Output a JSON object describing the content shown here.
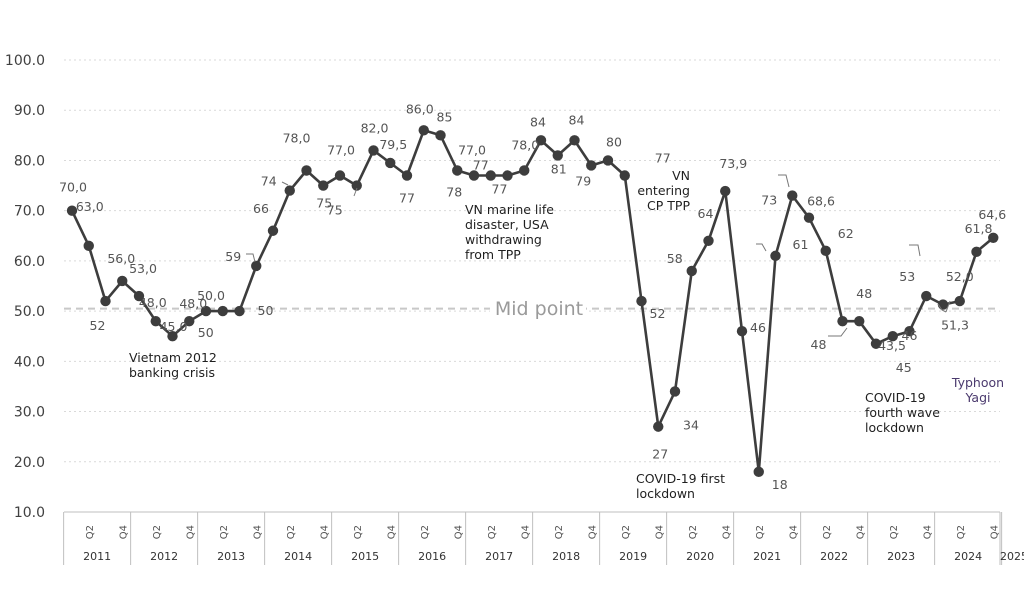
{
  "chart_data": {
    "type": "line",
    "ylim": [
      10,
      100
    ],
    "yticks": [
      "10.0",
      "20.0",
      "30.0",
      "40.0",
      "50.0",
      "60.0",
      "70.0",
      "80.0",
      "90.0",
      "100.0"
    ],
    "grid": true,
    "years": [
      "2011",
      "2012",
      "2013",
      "2014",
      "2015",
      "2016",
      "2017",
      "2018",
      "2019",
      "2020",
      "2021",
      "2022",
      "2023",
      "2024",
      "2025"
    ],
    "quarter_labels": [
      "Q2",
      "Q4"
    ],
    "x": [
      "2011 Q1",
      "2011 Q2",
      "2011 Q3",
      "2011 Q4",
      "2012 Q1",
      "2012 Q2",
      "2012 Q3",
      "2012 Q4",
      "2013 Q1",
      "2013 Q2",
      "2013 Q3",
      "2013 Q4",
      "2014 Q1",
      "2014 Q2",
      "2014 Q3",
      "2014 Q4",
      "2015 Q1",
      "2015 Q2",
      "2015 Q3",
      "2015 Q4",
      "2016 Q1",
      "2016 Q2",
      "2016 Q3",
      "2016 Q4",
      "2017 Q1",
      "2017 Q2",
      "2017 Q3",
      "2017 Q4",
      "2018 Q1",
      "2018 Q2",
      "2018 Q3",
      "2018 Q4",
      "2019 Q1",
      "2019 Q2",
      "2019 Q3",
      "2019 Q4",
      "2020 Q1",
      "2020 Q2",
      "2020 Q3",
      "2020 Q4",
      "2021 Q1",
      "2021 Q2",
      "2021 Q3",
      "2021 Q4",
      "2022 Q1",
      "2022 Q2",
      "2022 Q3",
      "2022 Q4",
      "2023 Q1",
      "2023 Q2",
      "2023 Q3",
      "2023 Q4",
      "2024 Q1",
      "2024 Q2",
      "2024 Q3",
      "2024 Q4",
      "2025 Q1"
    ],
    "values": [
      70.0,
      63.0,
      52,
      56.0,
      53.0,
      48.0,
      45.0,
      48.0,
      50.0,
      50,
      50,
      59,
      66,
      74,
      78.0,
      75,
      77.0,
      75,
      82.0,
      79.5,
      77,
      86.0,
      85,
      78,
      77.0,
      77,
      77,
      78.0,
      84,
      81,
      84,
      79,
      80,
      77,
      52,
      27,
      34,
      58,
      64,
      73.9,
      46,
      18,
      61,
      73,
      68.6,
      62,
      48,
      48,
      43.5,
      45,
      46,
      53,
      51.3,
      52.0,
      61.8,
      64.6,
      null
    ],
    "point_labels": [
      "70,0",
      "63,0",
      "52",
      "56,0",
      "53,0",
      "48,0",
      "45,0",
      "48,0",
      "50,0",
      "50",
      "50",
      "59",
      "66",
      "74",
      "78,0",
      "75",
      "77,0",
      "75",
      "82,0",
      "79,5",
      "77",
      "86,0",
      "85",
      "78",
      "77,0",
      "77",
      "77",
      "78,0",
      "84",
      "81",
      "84",
      "79",
      "80",
      "77",
      "52",
      "27",
      "34",
      "58",
      "64",
      "73,9",
      "46",
      "18",
      "61",
      "73",
      "68,6",
      "62",
      "48",
      "48",
      "43,5",
      "45",
      "46",
      "53",
      "51,3",
      "52,0",
      "61,8",
      "64,6",
      ""
    ],
    "midline": {
      "value": 50.5,
      "label": "Mid point"
    },
    "annotations": [
      {
        "lines": [
          "Vietnam 2012",
          "banking crisis"
        ]
      },
      {
        "lines": [
          "VN marine life",
          "disaster, USA",
          "withdrawing",
          "from TPP"
        ]
      },
      {
        "lines": [
          "VN",
          "entering",
          "CP TPP"
        ]
      },
      {
        "lines": [
          "COVID-19 first",
          "lockdown"
        ]
      },
      {
        "lines": [
          "COVID-19",
          "fourth wave",
          "lockdown"
        ]
      },
      {
        "lines": [
          "Typhoon",
          "Yagi"
        ]
      }
    ],
    "colors": {
      "line": "#3d3d3d",
      "marker": "#3d3d3d",
      "grid": "#d9d9d9",
      "midline": "#c8c8c8",
      "annotation_purple": "#4b3a6e"
    }
  }
}
